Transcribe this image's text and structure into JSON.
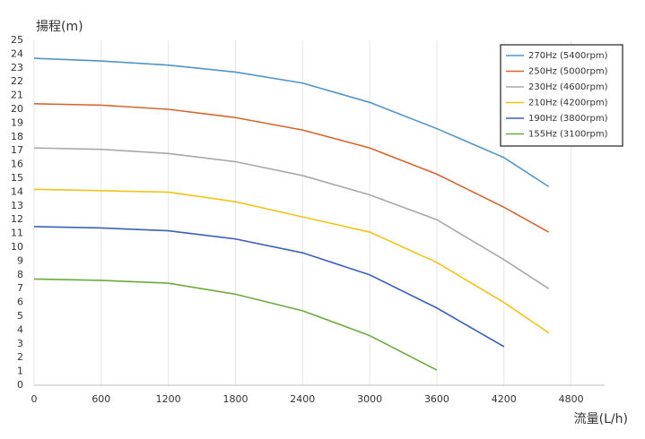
{
  "chart_data": {
    "type": "line",
    "y_label": "揚程(m)",
    "x_label": "流量(L/h)",
    "x": [
      0,
      600,
      1200,
      1800,
      2400,
      3000,
      3600,
      4200,
      4600
    ],
    "series": [
      {
        "name": "270Hz (5400rpm)",
        "color": "#4f95c8",
        "values": [
          23.7,
          23.5,
          23.2,
          22.7,
          21.9,
          20.5,
          18.6,
          16.5,
          14.4
        ]
      },
      {
        "name": "250Hz (5000rpm)",
        "color": "#d8642c",
        "values": [
          20.4,
          20.3,
          20.0,
          19.4,
          18.5,
          17.2,
          15.3,
          12.9,
          11.1
        ]
      },
      {
        "name": "230Hz (4600rpm)",
        "color": "#a8a8a8",
        "values": [
          17.2,
          17.1,
          16.8,
          16.2,
          15.2,
          13.8,
          12.0,
          9.1,
          7.0
        ]
      },
      {
        "name": "210Hz (4200rpm)",
        "color": "#f2c314",
        "values": [
          14.2,
          14.1,
          14.0,
          13.3,
          12.2,
          11.1,
          8.9,
          6.0,
          3.8
        ]
      },
      {
        "name": "190Hz (3800rpm)",
        "color": "#3b5fc0",
        "values": [
          11.5,
          11.4,
          11.2,
          10.6,
          9.6,
          8.0,
          5.6,
          2.8,
          null
        ]
      },
      {
        "name": "155Hz (3100rpm)",
        "color": "#6aab3c",
        "values": [
          7.7,
          7.6,
          7.4,
          6.6,
          5.4,
          3.6,
          1.1,
          null,
          null
        ]
      }
    ],
    "xlim": [
      0,
      5100
    ],
    "ylim": [
      0,
      25
    ],
    "xticks": [
      0,
      600,
      1200,
      1800,
      2400,
      3000,
      3600,
      4200,
      4800
    ],
    "yticks": [
      0,
      1,
      2,
      3,
      4,
      5,
      6,
      7,
      8,
      9,
      10,
      11,
      12,
      13,
      14,
      15,
      16,
      17,
      18,
      19,
      20,
      21,
      22,
      23,
      24,
      25
    ],
    "grid": "x",
    "legend": "upper right"
  }
}
